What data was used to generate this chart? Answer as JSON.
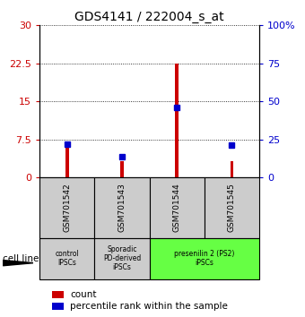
{
  "title": "GDS4141 / 222004_s_at",
  "samples": [
    "GSM701542",
    "GSM701543",
    "GSM701544",
    "GSM701545"
  ],
  "count_values": [
    7.0,
    3.2,
    22.5,
    3.2
  ],
  "percentile_values": [
    22.0,
    13.5,
    46.0,
    21.5
  ],
  "left_yticks": [
    0,
    7.5,
    15,
    22.5,
    30
  ],
  "right_yticks": [
    0,
    25,
    50,
    75,
    100
  ],
  "left_ylim": [
    0,
    30
  ],
  "right_ylim": [
    0,
    100
  ],
  "bar_color_count": "#cc0000",
  "bar_color_pct": "#0000cc",
  "cell_line_label": "cell line",
  "legend_count_label": "count",
  "legend_pct_label": "percentile rank within the sample",
  "title_fontsize": 10,
  "tick_fontsize": 8,
  "bar_width": 0.06,
  "sample_box_color": "#cccccc",
  "group_colors": [
    "#cccccc",
    "#cccccc",
    "#66ff44"
  ],
  "group_labels": [
    "control\nIPSCs",
    "Sporadic\nPD-derived\niPSCs",
    "presenilin 2 (PS2)\niPSCs"
  ],
  "group_col_ranges": [
    [
      0,
      0
    ],
    [
      1,
      1
    ],
    [
      2,
      3
    ]
  ]
}
